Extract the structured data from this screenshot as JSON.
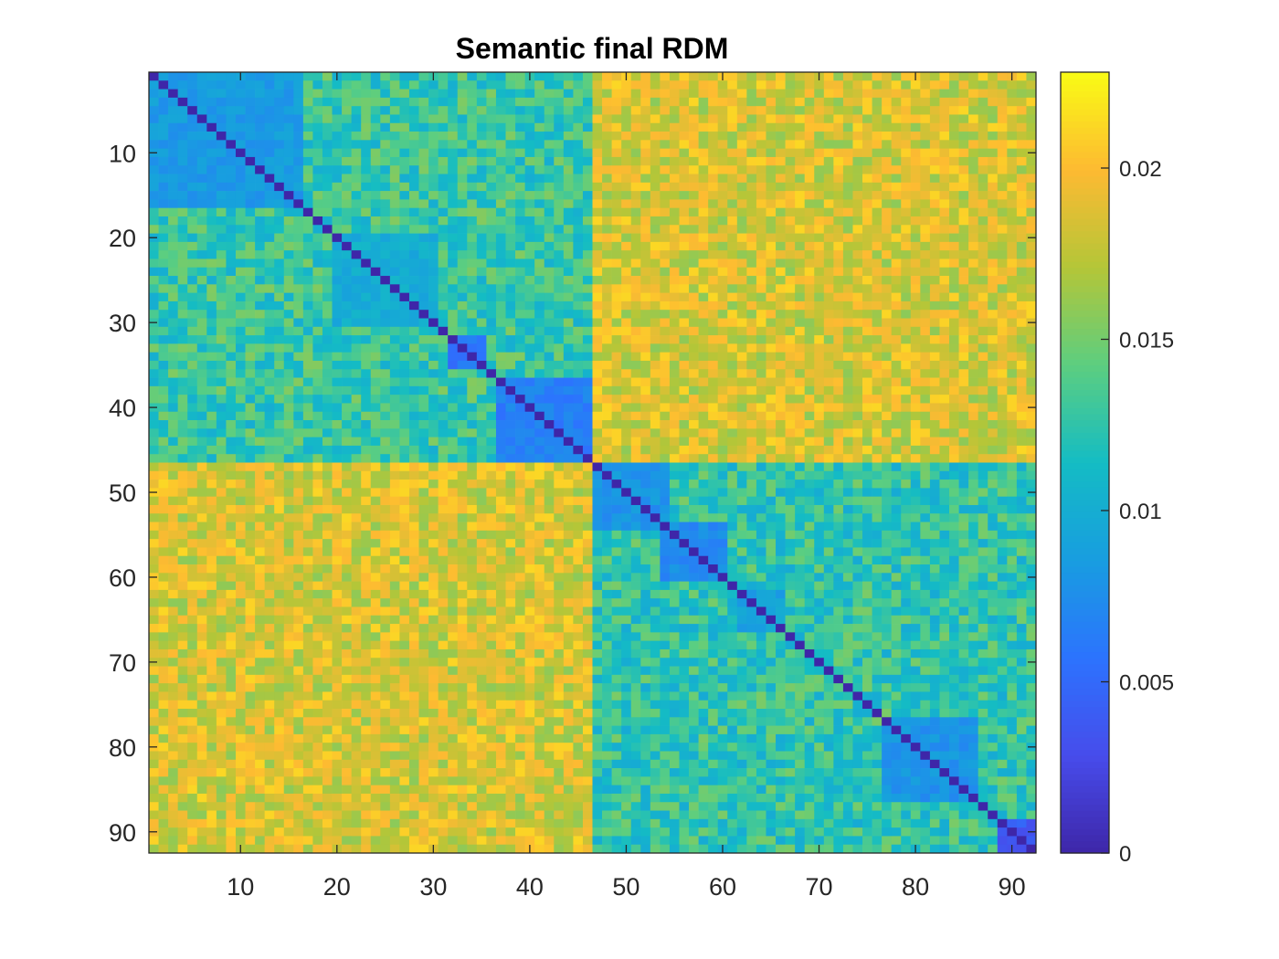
{
  "chart_data": {
    "type": "heatmap",
    "title": "Semantic final RDM",
    "n": 92,
    "xlabel": "",
    "ylabel": "",
    "x_ticks": [
      10,
      20,
      30,
      40,
      50,
      60,
      70,
      80,
      90
    ],
    "y_ticks": [
      10,
      20,
      30,
      40,
      50,
      60,
      70,
      80,
      90
    ],
    "xlim": [
      0.5,
      92.5
    ],
    "ylim": [
      0.5,
      92.5
    ],
    "y_direction": "reverse",
    "colorbar": {
      "location": "right",
      "colormap": "parula",
      "range": [
        0,
        0.0228
      ],
      "ticks": [
        0,
        0.005,
        0.01,
        0.015,
        0.02
      ],
      "tick_labels": [
        "0",
        "0.005",
        "0.01",
        "0.015",
        "0.02"
      ]
    },
    "groups": [
      {
        "range": [
          1,
          46
        ],
        "name": ""
      },
      {
        "range": [
          47,
          92
        ],
        "name": ""
      }
    ],
    "block_means": {
      "diagonal": 0,
      "within_group_1": 0.0128,
      "within_group_2": 0.0125,
      "between_groups": 0.0185
    },
    "low_dissimilarity_clusters": [
      {
        "range": [
          1,
          16
        ],
        "value": 0.0085
      },
      {
        "range": [
          20,
          30
        ],
        "value": 0.01
      },
      {
        "range": [
          32,
          35
        ],
        "value": 0.006
      },
      {
        "range": [
          37,
          46
        ],
        "value": 0.0065
      },
      {
        "range": [
          47,
          54
        ],
        "value": 0.008
      },
      {
        "range": [
          54,
          60
        ],
        "value": 0.0075
      },
      {
        "range": [
          62,
          66
        ],
        "value": 0.009
      },
      {
        "range": [
          77,
          86
        ],
        "value": 0.008
      },
      {
        "range": [
          89,
          92
        ],
        "value": 0.004
      }
    ]
  }
}
